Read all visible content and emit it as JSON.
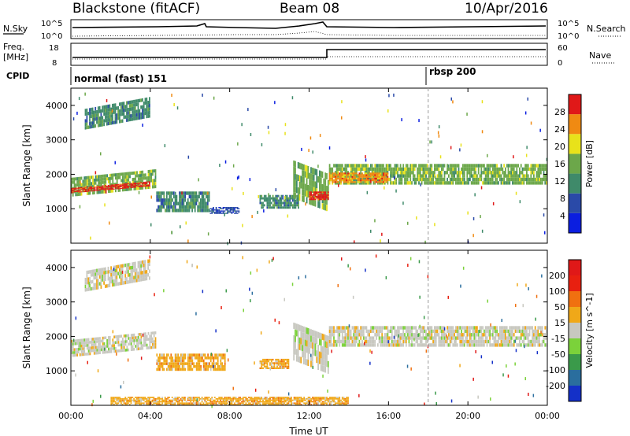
{
  "header": {
    "station": "Blackstone (fitACF)",
    "beam": "Beam 08",
    "date": "10/Apr/2016"
  },
  "summary_panels": {
    "nsky_label": "N.Sky",
    "nsky_ticks": [
      "10^5",
      "10^0"
    ],
    "nsearch_label": "N.Search",
    "nsearch_ticks": [
      "10^5",
      "10^0"
    ],
    "freq_label": "Freq.",
    "freq_unit": "[MHz]",
    "freq_ticks": [
      "18",
      "8"
    ],
    "nave_label": "Nave",
    "nave_ticks": [
      "60",
      "0"
    ],
    "cpid_label": "CPID",
    "cpid_modes": [
      {
        "name": "normal (fast) 151",
        "start_hour": 0
      },
      {
        "name": "rbsp 200",
        "start_hour": 18
      }
    ]
  },
  "chart_data": [
    {
      "type": "heatmap",
      "name": "power",
      "ylabel": "Slant Range [km]",
      "ylim": [
        0,
        4500
      ],
      "yticks": [
        "1000",
        "2000",
        "3000",
        "4000"
      ],
      "xlim": [
        0,
        24
      ],
      "xticks": [
        "00:00",
        "04:00",
        "08:00",
        "12:00",
        "16:00",
        "20:00",
        "00:00"
      ],
      "colorbar_label": "Power [dB]",
      "colorbar_ticks": [
        "28",
        "24",
        "20",
        "16",
        "12",
        "8",
        "4"
      ],
      "colors": [
        "#0b1ee0",
        "#2a4aa8",
        "#3f8a6a",
        "#6ca74a",
        "#e8e21a",
        "#f08a12",
        "#e01818"
      ],
      "bands": [
        {
          "x0": 0.0,
          "x1": 4.3,
          "y0": 1350,
          "y1": 1900,
          "slope": 250,
          "level": 3
        },
        {
          "x0": 0.0,
          "x1": 4.0,
          "y0": 1450,
          "y1": 1600,
          "slope": 200,
          "level": 6
        },
        {
          "x0": 0.7,
          "x1": 4.0,
          "y0": 3300,
          "y1": 3900,
          "slope": 350,
          "level": 2
        },
        {
          "x0": 4.3,
          "x1": 7.0,
          "y0": 900,
          "y1": 1500,
          "slope": 0,
          "level": 2
        },
        {
          "x0": 7.0,
          "x1": 8.5,
          "y0": 850,
          "y1": 1050,
          "slope": 0,
          "level": 1
        },
        {
          "x0": 9.5,
          "x1": 11.5,
          "y0": 1000,
          "y1": 1400,
          "slope": 0,
          "level": 2
        },
        {
          "x0": 11.2,
          "x1": 13.0,
          "y0": 1300,
          "y1": 2400,
          "slope": -400,
          "level": 3
        },
        {
          "x0": 12.0,
          "x1": 13.0,
          "y0": 1250,
          "y1": 1500,
          "slope": 0,
          "level": 6
        },
        {
          "x0": 13.0,
          "x1": 24.0,
          "y0": 1700,
          "y1": 2300,
          "slope": 0,
          "level": 3
        },
        {
          "x0": 13.0,
          "x1": 16.0,
          "y0": 1750,
          "y1": 2050,
          "slope": 0,
          "level": 5
        }
      ]
    },
    {
      "type": "heatmap",
      "name": "velocity",
      "ylabel": "Slant Range [km]",
      "ylim": [
        0,
        4500
      ],
      "yticks": [
        "1000",
        "2000",
        "3000",
        "4000"
      ],
      "xlim": [
        0,
        24
      ],
      "xticks": [
        "00:00",
        "04:00",
        "08:00",
        "12:00",
        "16:00",
        "20:00",
        "00:00"
      ],
      "xlabel": "Time UT",
      "colorbar_label": "Velocity [m s^-1]",
      "colorbar_ticks": [
        "200",
        "100",
        "50",
        "15",
        "-15",
        "-50",
        "-100",
        "-200"
      ],
      "colors": [
        "#1430c8",
        "#2a6e9e",
        "#3a9a4a",
        "#7bd23a",
        "#c8c8c0",
        "#f0a818",
        "#f07010",
        "#e82010",
        "#e01818"
      ],
      "bands": [
        {
          "x0": 0.0,
          "x1": 4.3,
          "y0": 1400,
          "y1": 1900,
          "slope": 250,
          "level": 4
        },
        {
          "x0": 0.7,
          "x1": 4.0,
          "y0": 3300,
          "y1": 3900,
          "slope": 350,
          "level": 4
        },
        {
          "x0": 4.3,
          "x1": 7.8,
          "y0": 1000,
          "y1": 1500,
          "slope": 0,
          "level": 5
        },
        {
          "x0": 9.5,
          "x1": 11.0,
          "y0": 1050,
          "y1": 1350,
          "slope": 0,
          "level": 5
        },
        {
          "x0": 11.2,
          "x1": 13.0,
          "y0": 1300,
          "y1": 2400,
          "slope": -400,
          "level": 4
        },
        {
          "x0": 13.0,
          "x1": 24.0,
          "y0": 1700,
          "y1": 2300,
          "slope": 0,
          "level": 4
        },
        {
          "x0": 2.0,
          "x1": 14.0,
          "y0": 0,
          "y1": 250,
          "slope": 0,
          "level": 5
        }
      ]
    }
  ]
}
